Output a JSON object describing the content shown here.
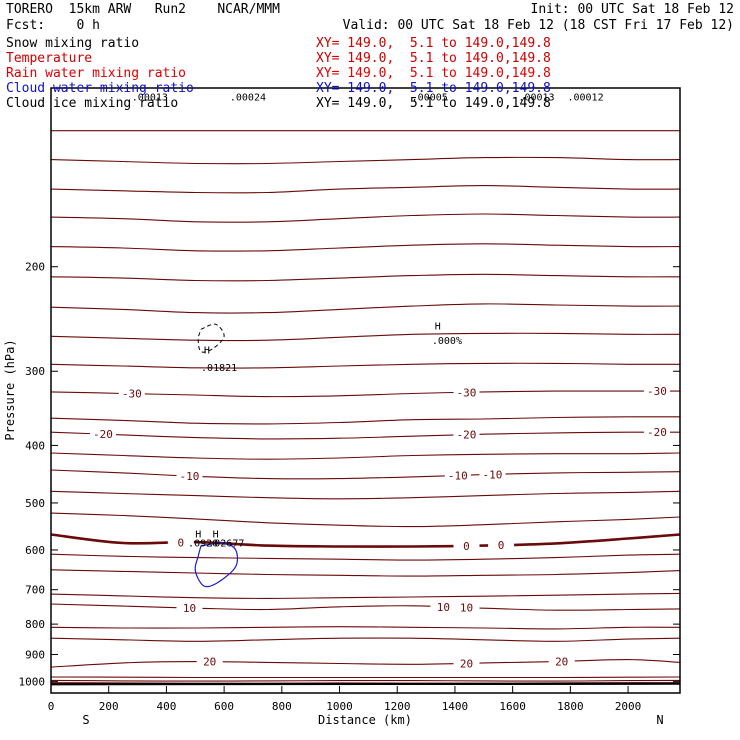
{
  "header": {
    "title": "TORERO  15km ARW   Run2    NCAR/MMM",
    "init": "Init: 00 UTC Sat 18 Feb 12",
    "fcst": "Fcst:    0 h",
    "valid": "Valid: 00 UTC Sat 18 Feb 12 (18 CST Fri 17 Feb 12)"
  },
  "legend": [
    {
      "name": "Snow mixing ratio",
      "color": "#000000",
      "range": "XY= 149.0,  5.1 to 149.0,149.8"
    },
    {
      "name": "Temperature",
      "color": "#cc0000",
      "range": "XY= 149.0,  5.1 to 149.0,149.8"
    },
    {
      "name": "Rain water mixing ratio",
      "color": "#e00000",
      "range": "XY= 149.0,  5.1 to 149.0,149.8"
    },
    {
      "name": "Cloud water mixing ratio",
      "color": "#1010cc",
      "range": "XY= 149.0,  5.1 to 149.0,149.8"
    },
    {
      "name": "Cloud ice mixing ratio",
      "color": "#000000",
      "range": "XY= 149.0,  5.1 to 149.0,149.8"
    }
  ],
  "colors": {
    "isotherm": "#6b0a0a",
    "cloud_water": "#1a1acc",
    "ice": "#000000"
  },
  "chart_data": {
    "type": "line",
    "xlabel": "Distance (km)",
    "ylabel": "Pressure (hPa)",
    "xlim": [
      0,
      2180
    ],
    "ylim": [
      100,
      1045
    ],
    "y_scale": "log",
    "x_ticks": [
      0,
      200,
      400,
      600,
      800,
      1000,
      1200,
      1400,
      1600,
      1800,
      2000
    ],
    "y_ticks": [
      200,
      300,
      400,
      500,
      600,
      700,
      800,
      900,
      1000
    ],
    "end_labels": {
      "left": "S",
      "right": "N"
    },
    "isotherm_x": [
      0,
      250,
      500,
      750,
      1000,
      1250,
      1500,
      1750,
      2000,
      2180
    ],
    "isotherms": [
      {
        "p": [
          118,
          118,
          118,
          118,
          118,
          118,
          118,
          118,
          118,
          118
        ]
      },
      {
        "p": [
          132,
          133,
          134,
          134,
          133,
          132,
          131,
          131,
          132,
          132
        ]
      },
      {
        "p": [
          148,
          149,
          150,
          150,
          148,
          147,
          146,
          147,
          148,
          148
        ]
      },
      {
        "p": [
          165,
          166,
          168,
          168,
          166,
          164,
          163,
          164,
          165,
          165
        ]
      },
      {
        "p": [
          185,
          186,
          188,
          188,
          186,
          184,
          183,
          184,
          185,
          185
        ]
      },
      {
        "p": [
          208,
          209,
          211,
          211,
          209,
          207,
          206,
          207,
          208,
          208
        ]
      },
      {
        "p": [
          234,
          236,
          239,
          239,
          236,
          233,
          231,
          232,
          233,
          233
        ]
      },
      {
        "p": [
          262,
          264,
          266,
          266,
          263,
          260,
          259,
          259,
          260,
          260
        ]
      },
      {
        "p": [
          292,
          294,
          296,
          296,
          294,
          292,
          291,
          291,
          292,
          292
        ]
      },
      {
        "p": [
          325,
          327,
          329,
          331,
          330,
          327,
          325,
          324,
          324,
          324
        ],
        "label": "-30",
        "label_x": [
          280,
          1440,
          2100
        ]
      },
      {
        "p": [
          360,
          363,
          367,
          368,
          366,
          362,
          361,
          359,
          358,
          358
        ]
      },
      {
        "p": [
          380,
          384,
          388,
          390,
          389,
          386,
          383,
          381,
          380,
          380
        ],
        "label": "-20",
        "label_x": [
          180,
          1440,
          2100
        ]
      },
      {
        "p": [
          412,
          416,
          420,
          422,
          420,
          416,
          414,
          413,
          413,
          412
        ]
      },
      {
        "p": [
          440,
          445,
          451,
          455,
          455,
          452,
          448,
          445,
          444,
          443
        ],
        "label": "-10",
        "label_x": [
          480,
          1410,
          1530
        ]
      },
      {
        "p": [
          478,
          482,
          486,
          490,
          492,
          490,
          486,
          482,
          480,
          478
        ]
      },
      {
        "p": [
          520,
          525,
          532,
          540,
          545,
          548,
          544,
          538,
          533,
          528
        ]
      },
      {
        "p": [
          565,
          584,
          582,
          590,
          592,
          592,
          590,
          585,
          574,
          565
        ],
        "label": "0",
        "label_x": [
          450,
          1440,
          1560
        ],
        "bold": true
      },
      {
        "p": [
          610,
          615,
          618,
          620,
          622,
          624,
          622,
          618,
          612,
          610
        ]
      },
      {
        "p": [
          648,
          652,
          656,
          660,
          662,
          664,
          662,
          660,
          655,
          650
        ]
      },
      {
        "p": [
          712,
          717,
          722,
          724,
          722,
          720,
          718,
          715,
          712,
          710
        ]
      },
      {
        "p": [
          740,
          746,
          752,
          756,
          748,
          745,
          752,
          758,
          756,
          754
        ],
        "label": "10",
        "label_x": [
          480,
          1360,
          1440
        ]
      },
      {
        "p": [
          810,
          812,
          812,
          810,
          808,
          810,
          812,
          815,
          810,
          810
        ]
      },
      {
        "p": [
          845,
          850,
          855,
          850,
          845,
          845,
          850,
          855,
          848,
          845
        ]
      },
      {
        "p": [
          945,
          930,
          925,
          928,
          932,
          935,
          930,
          925,
          918,
          928
        ],
        "label": "20",
        "label_x": [
          550,
          1440,
          1770
        ]
      },
      {
        "p": [
          982,
          983,
          984,
          984,
          984,
          984,
          984,
          984,
          983,
          982
        ]
      },
      {
        "p": [
          995,
          997,
          998,
          997,
          996,
          996,
          997,
          998,
          996,
          995
        ]
      },
      {
        "p": [
          1004,
          1005,
          1006,
          1006,
          1005,
          1006,
          1006,
          1005,
          1004,
          1004
        ]
      }
    ],
    "cloud_water": [
      {
        "x": [
          520,
          600,
          640,
          640,
          580,
          530,
          500,
          510,
          520
        ],
        "p": [
          590,
          585,
          600,
          640,
          680,
          690,
          650,
          615,
          590
        ]
      }
    ],
    "ice": [
      {
        "x": [
          520,
          570,
          600,
          560,
          520,
          510,
          520
        ],
        "p": [
          255,
          250,
          262,
          275,
          278,
          265,
          255
        ]
      }
    ],
    "annotations": [
      {
        "text": ".00013",
        "x": 280,
        "p": 105
      },
      {
        "text": ".00024",
        "x": 620,
        "p": 105
      },
      {
        "text": ".00005",
        "x": 1250,
        "p": 105
      },
      {
        "text": ".00013",
        "x": 1620,
        "p": 105
      },
      {
        "text": ".00012",
        "x": 1790,
        "p": 105
      },
      {
        "text": "H",
        "x": 530,
        "p": 280
      },
      {
        "text": ".01821",
        "x": 520,
        "p": 300
      },
      {
        "text": "H",
        "x": 1330,
        "p": 255
      },
      {
        "text": ".000%",
        "x": 1320,
        "p": 270
      },
      {
        "text": "H",
        "x": 500,
        "p": 572
      },
      {
        "text": "H",
        "x": 560,
        "p": 572
      },
      {
        "text": ".0920",
        "x": 475,
        "p": 592
      },
      {
        "text": ".02677",
        "x": 545,
        "p": 592
      }
    ]
  }
}
